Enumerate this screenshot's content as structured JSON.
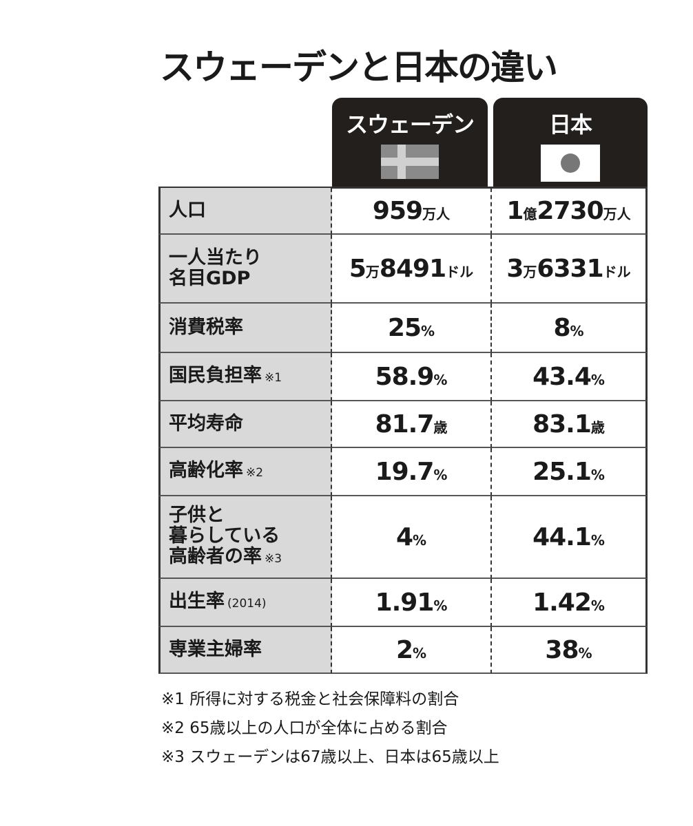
{
  "title": "スウェーデンと日本の違い",
  "table": {
    "columns": [
      "スウェーデン",
      "日本"
    ],
    "rows": [
      {
        "label": "人口",
        "values": [
          "959万人",
          "1億2730万人"
        ]
      },
      {
        "label": "一人当たり\n名目GDP",
        "values": [
          "5万8491ドル",
          "3万6331ドル"
        ]
      },
      {
        "label": "消費税率",
        "values": [
          "25%",
          "8%"
        ]
      },
      {
        "label": "国民負担率",
        "note": "※1",
        "values": [
          "58.9%",
          "43.4%"
        ]
      },
      {
        "label": "平均寿命",
        "values": [
          "81.7歳",
          "83.1歳"
        ]
      },
      {
        "label": "高齢化率",
        "note": "※2",
        "values": [
          "19.7%",
          "25.1%"
        ]
      },
      {
        "label": "子供と\n暮らしている\n高齢者の率",
        "note": "※3",
        "values": [
          "4%",
          "44.1%"
        ]
      },
      {
        "label": "出生率",
        "note": "(2014)",
        "values": [
          "1.91%",
          "1.42%"
        ]
      },
      {
        "label": "専業主婦率",
        "values": [
          "2%",
          "38%"
        ]
      }
    ]
  },
  "footnotes": [
    "※1 所得に対する税金と社会保障料の割合",
    "※2 65歳以上の人口が全体に占める割合",
    "※3 スウェーデンは67歳以上、日本は65歳以上"
  ]
}
